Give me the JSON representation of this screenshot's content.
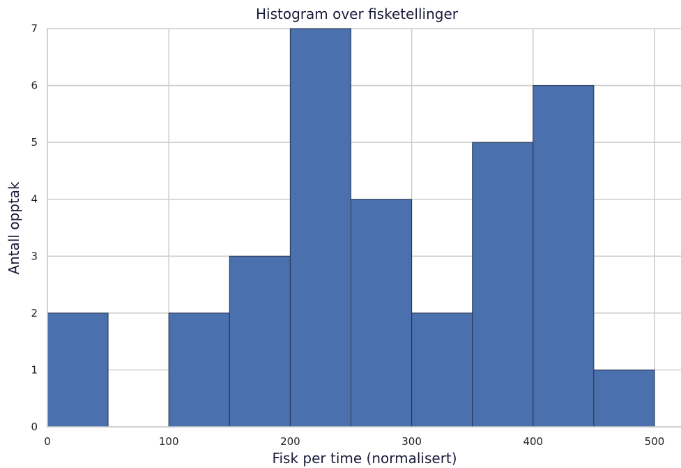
{
  "chart_data": {
    "type": "bar",
    "title": "Histogram over fisketellinger",
    "xlabel": "Fisk per time (normalisert)",
    "ylabel": "Antall opptak",
    "xlim": [
      0,
      525
    ],
    "ylim": [
      0,
      7
    ],
    "xticks": [
      0,
      100,
      200,
      300,
      400,
      500
    ],
    "yticks": [
      0,
      1,
      2,
      3,
      4,
      5,
      6,
      7
    ],
    "grid": true,
    "bins": [
      {
        "x0": 0,
        "x1": 50,
        "value": 2
      },
      {
        "x0": 50,
        "x1": 100,
        "value": 0
      },
      {
        "x0": 100,
        "x1": 150,
        "value": 2
      },
      {
        "x0": 150,
        "x1": 200,
        "value": 3
      },
      {
        "x0": 200,
        "x1": 250,
        "value": 7
      },
      {
        "x0": 250,
        "x1": 300,
        "value": 4
      },
      {
        "x0": 300,
        "x1": 350,
        "value": 2
      },
      {
        "x0": 350,
        "x1": 400,
        "value": 5
      },
      {
        "x0": 400,
        "x1": 450,
        "value": 6
      },
      {
        "x0": 450,
        "x1": 500,
        "value": 1
      }
    ],
    "bar_color": "#4a70ad",
    "bar_edge_color": "#27364e",
    "grid_color": "#cccccc"
  }
}
